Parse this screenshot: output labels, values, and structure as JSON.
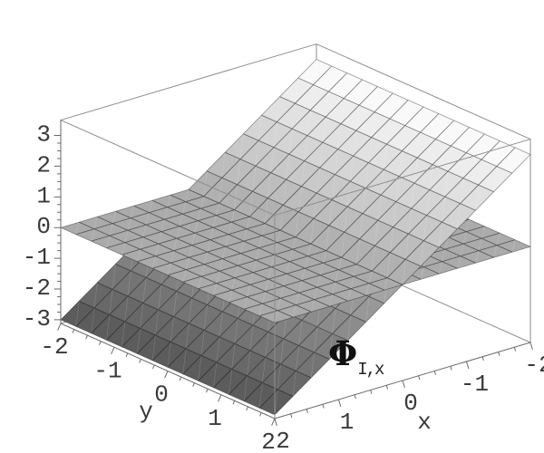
{
  "chart_data": {
    "type": "surface",
    "title": "",
    "description": "3D plot of two intersecting planes: the slanted plane z = -1.5*x shaded from dark (low z) to white (high z), and the horizontal zero plane z = 0, drawn with a 14x14 mesh over x,y in [-2,2] inside a Mathematica-style axes box.",
    "surfaces": [
      {
        "name": "phi-slanted-plane",
        "equation": "z = -1.5*x",
        "a": -1.5,
        "b": 0,
        "c": 0
      },
      {
        "name": "zero-plane",
        "equation": "z = 0",
        "a": 0,
        "b": 0,
        "c": 0
      }
    ],
    "domain": {
      "x": [
        -2,
        2
      ],
      "y": [
        -2,
        2
      ]
    },
    "zlim": [
      -3,
      3
    ],
    "mesh_divisions": 14,
    "axes": {
      "x": {
        "label": "x",
        "tick_values": [
          2,
          1,
          0,
          -1,
          -2
        ],
        "tick_labels": [
          "2",
          "1",
          "0",
          "-1",
          "-2"
        ],
        "minor_tick_step": 0.25
      },
      "y": {
        "label": "y",
        "tick_values": [
          -2,
          -1,
          0,
          1,
          2
        ],
        "tick_labels": [
          "-2",
          "-1",
          "0",
          "1",
          "2"
        ],
        "minor_tick_step": 0.25
      },
      "z": {
        "label": "",
        "tick_values": [
          3,
          2,
          1,
          0,
          -1,
          -2,
          -3
        ],
        "tick_labels": [
          "3",
          "2",
          "1",
          "0",
          "-1",
          "-2",
          "-3"
        ],
        "minor_tick_step": 0.25
      }
    },
    "annotation": {
      "base": "Φ",
      "subscript": "I,x"
    },
    "colors": {
      "background": "#ffffff",
      "surface_low": "#565656",
      "surface_mid": "#ababab",
      "surface_high": "#ffffff",
      "mesh_line": "rgba(0,0,0,0.40)",
      "facet_diagonal_line": "rgba(255,255,255,0.17)",
      "box_edge": "#8e8e8e",
      "axis_line": "#6a6a6a",
      "tick_label_color": "#3a3a3a"
    }
  }
}
